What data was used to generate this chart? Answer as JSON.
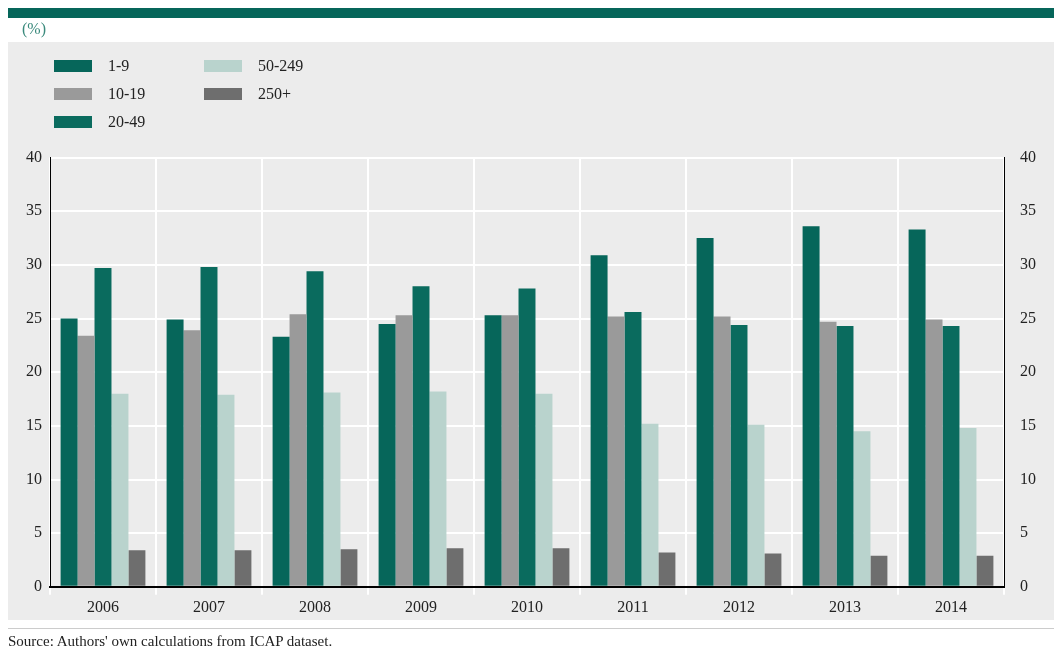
{
  "chart_data": {
    "type": "bar",
    "categories": [
      "2006",
      "2007",
      "2008",
      "2009",
      "2010",
      "2011",
      "2012",
      "2013",
      "2014"
    ],
    "series": [
      {
        "name": "1-9",
        "color": "#06665a",
        "values": [
          25.0,
          24.9,
          23.3,
          24.5,
          25.3,
          30.9,
          32.5,
          33.6,
          33.3
        ]
      },
      {
        "name": "10-19",
        "color": "#9a9a9a",
        "values": [
          23.4,
          23.9,
          25.4,
          25.3,
          25.3,
          25.2,
          25.2,
          24.7,
          24.9
        ]
      },
      {
        "name": "20-49",
        "color": "#0a6b5e",
        "values": [
          29.7,
          29.8,
          29.4,
          28.0,
          27.8,
          25.6,
          24.4,
          24.3,
          24.3
        ]
      },
      {
        "name": "50-249",
        "color": "#b9d3cd",
        "values": [
          18.0,
          17.9,
          18.1,
          18.2,
          18.0,
          15.2,
          15.1,
          14.5,
          14.8
        ]
      },
      {
        "name": "250+",
        "color": "#6e6e6e",
        "values": [
          3.4,
          3.4,
          3.5,
          3.6,
          3.6,
          3.2,
          3.1,
          2.9,
          2.9
        ]
      }
    ],
    "ylim": [
      0,
      40
    ],
    "yticks": [
      0,
      5,
      10,
      15,
      20,
      25,
      30,
      35,
      40
    ],
    "y2lim": [
      0,
      40
    ],
    "y2ticks": [
      0,
      5,
      10,
      15,
      20,
      25,
      30,
      35,
      40
    ],
    "grid": true,
    "legend": "top left",
    "annotations": [
      "(%)",
      "Source: Authors' own calculations from ICAP dataset."
    ]
  }
}
